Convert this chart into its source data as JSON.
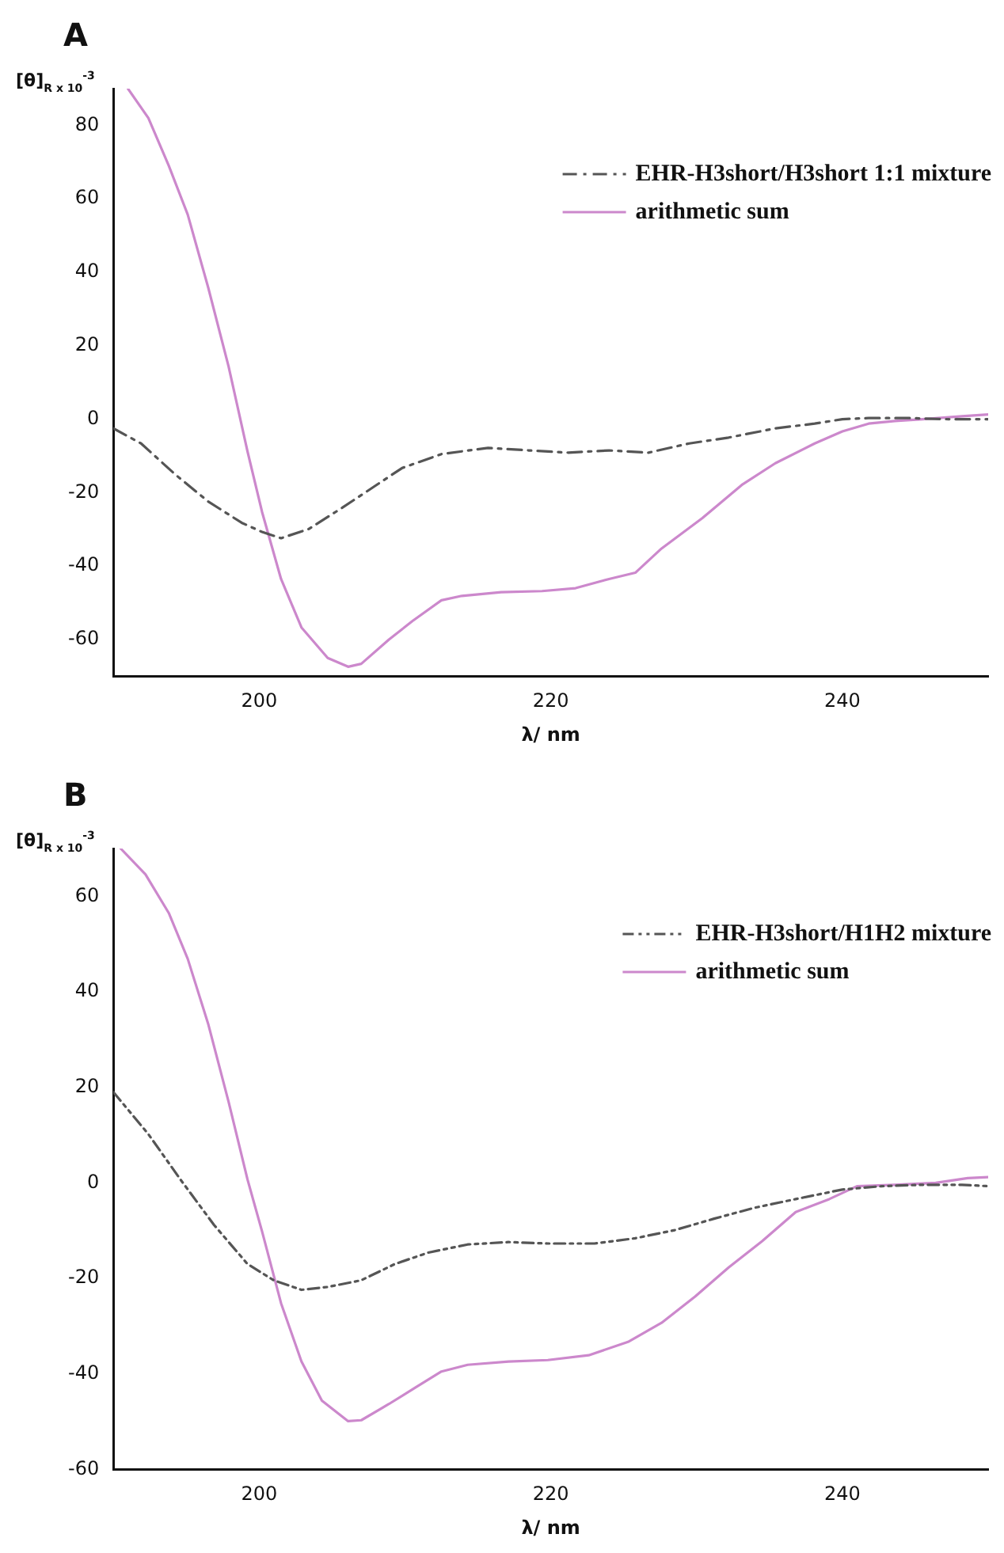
{
  "chart_data": [
    {
      "type": "line",
      "title": "A",
      "xlabel": "λ/ nm",
      "ylabel": "[θ]$_{R x 10}$$^{-3}$",
      "xlim": [
        190,
        250
      ],
      "xticks": [
        200,
        220,
        240
      ],
      "ylim": [
        -70,
        90
      ],
      "yticks": [
        -60,
        -40,
        -20,
        0,
        20,
        40,
        60,
        80
      ],
      "grid": false,
      "legend": "top right",
      "marker": "none",
      "series": [
        {
          "name": "EHR-H3short/H3short 1:1 mixture",
          "color": "#555555",
          "line_style": "dashed",
          "x": [
            190,
            191.9,
            194.2,
            196.5,
            198.8,
            200.2,
            201.5,
            203.4,
            205.7,
            207.9,
            209.8,
            212.5,
            215.7,
            218.5,
            221.2,
            224,
            226.7,
            229.5,
            232.2,
            235.4,
            238.1,
            240,
            241.8,
            244.6,
            247.3,
            250
          ],
          "values": [
            -2.5,
            -6.6,
            -14.9,
            -22.4,
            -28.2,
            -30.7,
            -32.4,
            -29.9,
            -24.1,
            -18.3,
            -13.3,
            -9.5,
            -7.8,
            -8.5,
            -9.1,
            -8.5,
            -9.1,
            -6.6,
            -5,
            -2.5,
            -1.2,
            0,
            0.3,
            0.3,
            0,
            0
          ]
        },
        {
          "name": "arithmetic sum",
          "color": "#cc88cc",
          "line_style": "solid",
          "x": [
            191,
            192.4,
            193.8,
            195.1,
            196.5,
            197.9,
            199.2,
            200.2,
            201.5,
            202.9,
            204.7,
            206.1,
            207,
            208.9,
            210.5,
            212.5,
            213.9,
            216.6,
            219.4,
            221.7,
            224,
            225.8,
            227.6,
            230.4,
            233.1,
            235.4,
            238.1,
            240,
            241.8,
            243.6,
            245.5,
            248.2,
            250
          ],
          "values": [
            90,
            82,
            69,
            55.7,
            35.9,
            14.4,
            -8.8,
            -25.3,
            -43.5,
            -56.7,
            -65,
            -67.4,
            -66.6,
            -60,
            -55,
            -49.3,
            -48.1,
            -47.1,
            -46.8,
            -46,
            -43.5,
            -41.8,
            -35.2,
            -26.9,
            -17.9,
            -12,
            -6.6,
            -3.3,
            -1.2,
            -0.5,
            0,
            0.8,
            1.3
          ]
        }
      ]
    },
    {
      "type": "line",
      "title": "B",
      "xlabel": "λ/ nm",
      "ylabel": "[θ]$_{R x 10}$$^{-3}$",
      "xlim": [
        190,
        250
      ],
      "xticks": [
        200,
        220,
        240
      ],
      "ylim": [
        -60,
        70
      ],
      "yticks": [
        -60,
        -40,
        -20,
        0,
        20,
        40,
        60
      ],
      "grid": false,
      "legend": "top right",
      "marker": "none",
      "series": [
        {
          "name": "EHR-H3short/H1H2 mixture",
          "color": "#555555",
          "line_style": "dotted",
          "x": [
            190,
            192.4,
            194.6,
            196.9,
            199.2,
            201,
            202.9,
            204.7,
            207,
            209.3,
            211.6,
            214.3,
            217.1,
            219.8,
            223,
            225.8,
            228.5,
            231.2,
            234,
            236.8,
            240,
            242.7,
            245.5,
            248.2,
            250
          ],
          "values": [
            19,
            10.2,
            0.7,
            -8.8,
            -17,
            -20.4,
            -22.4,
            -21.8,
            -20.4,
            -17,
            -14.6,
            -12.9,
            -12.4,
            -12.7,
            -12.7,
            -11.6,
            -9.9,
            -7.5,
            -5.2,
            -3.4,
            -1.4,
            -0.7,
            -0.4,
            -0.4,
            -0.7
          ]
        },
        {
          "name": "arithmetic sum",
          "color": "#cc88cc",
          "line_style": "solid",
          "x": [
            190.5,
            192.2,
            193.8,
            195.1,
            196.5,
            197.9,
            199.2,
            200.2,
            201.5,
            202.9,
            204.3,
            206.1,
            207,
            208.9,
            210.7,
            212.5,
            214.3,
            217.1,
            219.8,
            222.6,
            225.3,
            227.6,
            229.9,
            232.2,
            234.5,
            236.8,
            239.1,
            241,
            243.6,
            246.4,
            248.6,
            250
          ],
          "values": [
            70,
            64.6,
            56.5,
            46.9,
            33.3,
            17,
            0.7,
            -10.2,
            -25.2,
            -37.4,
            -45.6,
            -49.9,
            -49.7,
            -46.3,
            -42.9,
            -39.5,
            -38.1,
            -37.4,
            -37.1,
            -36.1,
            -33.3,
            -29.3,
            -23.8,
            -17.7,
            -12.2,
            -6.1,
            -3.4,
            -0.7,
            -0.4,
            0,
            1,
            1.2
          ]
        }
      ]
    }
  ]
}
